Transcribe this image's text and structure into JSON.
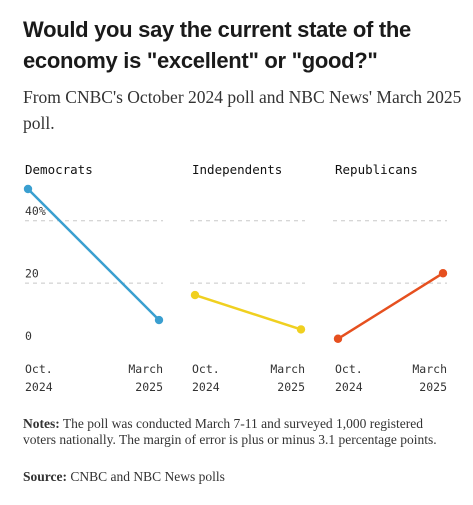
{
  "title": "Would you say the current state of the economy is \"excellent\" or \"good?\"",
  "subtitle": "From CNBC's October 2024 poll and NBC News' March 2025 poll.",
  "notes_label": "Notes:",
  "notes_text": "The poll was conducted March 7-11 and surveyed 1,000 registered voters nationally. The margin of error is plus or minus 3.1 percentage points.",
  "source_label": "Source:",
  "source_text": "CNBC and NBC News polls",
  "chart_data": {
    "type": "line",
    "ylim": [
      0,
      50
    ],
    "yticks": [
      {
        "value": 0,
        "label": "0"
      },
      {
        "value": 20,
        "label": "20"
      },
      {
        "value": 40,
        "label": "40%"
      }
    ],
    "grid": true,
    "x_labels": [
      {
        "line1": "Oct.",
        "line2": "2024"
      },
      {
        "line1": "March",
        "line2": "2025"
      }
    ],
    "panels": [
      {
        "name": "Democrats",
        "color": "#3a9fd0",
        "values": [
          50,
          8
        ]
      },
      {
        "name": "Independents",
        "color": "#f0d020",
        "values": [
          16,
          5
        ]
      },
      {
        "name": "Republicans",
        "color": "#e6501f",
        "values": [
          2,
          23
        ]
      }
    ]
  }
}
